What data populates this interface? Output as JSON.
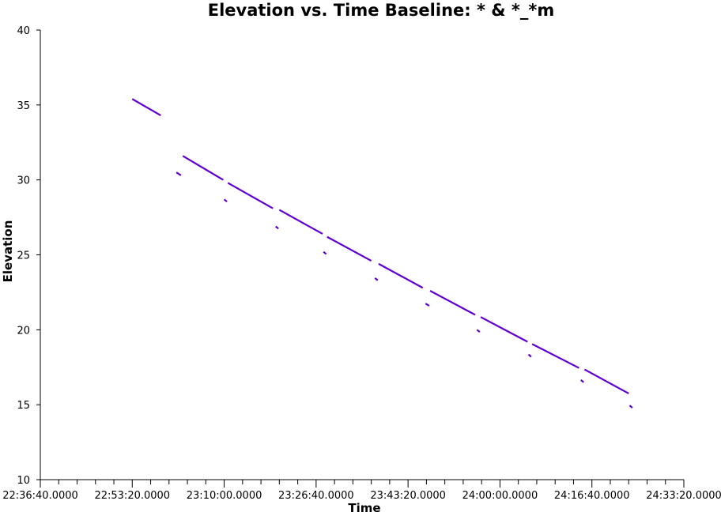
{
  "chart_data": {
    "type": "line",
    "title": "Elevation vs. Time Baseline: * & *_*m",
    "xlabel": "Time",
    "ylabel": "Elevation",
    "x_ticks": [
      "22:36:40.0000",
      "22:53:20.0000",
      "23:10:00.0000",
      "23:26:40.0000",
      "23:43:20.0000",
      "24:00:00.0000",
      "24:16:40.0000",
      "24:33:20.0000"
    ],
    "xlim": [
      "22:36:40",
      "24:33:20"
    ],
    "ylim": [
      10,
      40
    ],
    "y_ticks": [
      10,
      15,
      20,
      25,
      30,
      35,
      40
    ],
    "grid": false,
    "series_color": "#6000d0",
    "segments": [
      {
        "x": [
          "22:53:20",
          "22:58:30"
        ],
        "y": [
          35.4,
          34.3
        ]
      },
      {
        "x": [
          "23:01:20",
          "23:02:10"
        ],
        "y": [
          30.5,
          30.3
        ]
      },
      {
        "x": [
          "23:02:30",
          "23:09:50"
        ],
        "y": [
          31.6,
          30.0
        ]
      },
      {
        "x": [
          "23:10:00",
          "23:10:30"
        ],
        "y": [
          28.7,
          28.55
        ]
      },
      {
        "x": [
          "23:10:40",
          "23:18:50"
        ],
        "y": [
          29.8,
          28.1
        ]
      },
      {
        "x": [
          "23:19:20",
          "23:19:50"
        ],
        "y": [
          26.9,
          26.75
        ]
      },
      {
        "x": [
          "23:20:00",
          "23:27:50"
        ],
        "y": [
          28.0,
          26.4
        ]
      },
      {
        "x": [
          "23:28:00",
          "23:28:30"
        ],
        "y": [
          25.2,
          25.05
        ]
      },
      {
        "x": [
          "23:28:40",
          "23:36:40"
        ],
        "y": [
          26.2,
          24.6
        ]
      },
      {
        "x": [
          "23:37:20",
          "23:37:50"
        ],
        "y": [
          23.45,
          23.3
        ]
      },
      {
        "x": [
          "23:38:00",
          "23:46:00"
        ],
        "y": [
          24.4,
          22.8
        ]
      },
      {
        "x": [
          "23:46:30",
          "23:47:10"
        ],
        "y": [
          21.75,
          21.6
        ]
      },
      {
        "x": [
          "23:47:20",
          "23:55:30"
        ],
        "y": [
          22.6,
          21.0
        ]
      },
      {
        "x": [
          "23:55:50",
          "23:56:20"
        ],
        "y": [
          20.0,
          19.85
        ]
      },
      {
        "x": [
          "23:56:30",
          "24:05:00"
        ],
        "y": [
          20.85,
          19.2
        ]
      },
      {
        "x": [
          "24:05:10",
          "24:05:40"
        ],
        "y": [
          18.35,
          18.2
        ]
      },
      {
        "x": [
          "24:05:50",
          "24:14:20"
        ],
        "y": [
          19.05,
          17.45
        ]
      },
      {
        "x": [
          "24:14:40",
          "24:15:10"
        ],
        "y": [
          16.65,
          16.5
        ]
      },
      {
        "x": [
          "24:15:20",
          "24:23:20"
        ],
        "y": [
          17.35,
          15.75
        ]
      },
      {
        "x": [
          "24:23:30",
          "24:24:00"
        ],
        "y": [
          14.95,
          14.8
        ]
      }
    ]
  }
}
